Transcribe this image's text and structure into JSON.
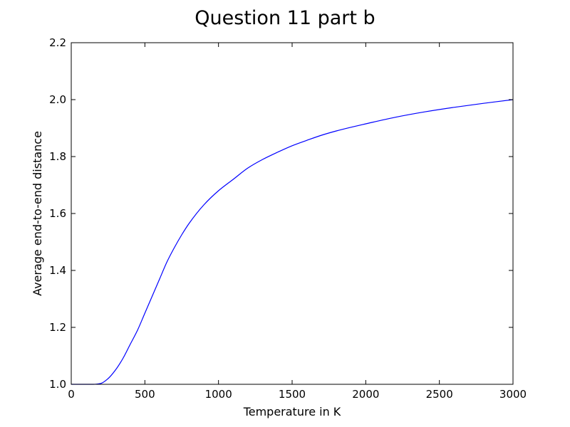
{
  "chart_data": {
    "type": "line",
    "title": "Question 11 part b",
    "xlabel": "Temperature in K",
    "ylabel": "Average end-to-end distance",
    "xlim": [
      0,
      3000
    ],
    "ylim": [
      1.0,
      2.2
    ],
    "grid": false,
    "legend": "none",
    "x_ticks": [
      0,
      500,
      1000,
      1500,
      2000,
      2500,
      3000
    ],
    "x_tick_labels": [
      "0",
      "500",
      "1000",
      "1500",
      "2000",
      "2500",
      "3000"
    ],
    "y_ticks": [
      1.0,
      1.2,
      1.4,
      1.6,
      1.8,
      2.0,
      2.2
    ],
    "y_tick_labels": [
      "1.0",
      "1.2",
      "1.4",
      "1.6",
      "1.8",
      "2.0",
      "2.2"
    ],
    "series": [
      {
        "color": "#0000ff",
        "x": [
          0,
          100,
          150,
          200,
          250,
          300,
          350,
          400,
          450,
          500,
          550,
          600,
          650,
          700,
          750,
          800,
          900,
          1000,
          1100,
          1200,
          1300,
          1400,
          1500,
          1600,
          1700,
          1800,
          1900,
          2000,
          2200,
          2400,
          2600,
          2800,
          3000
        ],
        "y": [
          1.0,
          1.0,
          1.0,
          1.003,
          1.02,
          1.05,
          1.09,
          1.14,
          1.19,
          1.25,
          1.31,
          1.37,
          1.43,
          1.48,
          1.525,
          1.565,
          1.63,
          1.68,
          1.72,
          1.76,
          1.79,
          1.815,
          1.838,
          1.857,
          1.875,
          1.89,
          1.903,
          1.915,
          1.938,
          1.957,
          1.973,
          1.987,
          2.0
        ]
      }
    ]
  }
}
